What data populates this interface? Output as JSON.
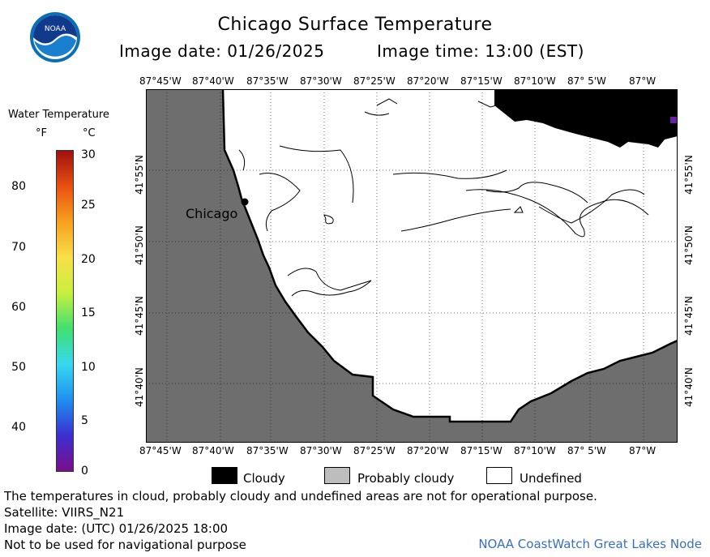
{
  "title": "Chicago Surface Temperature",
  "image_date": "Image date: 01/26/2025",
  "image_time": "Image time: 13:00 (EST)",
  "logo": {
    "text": "NOAA",
    "colors": {
      "outer": "#0a6fb6",
      "inner": "#ffffff",
      "bird": "#ffffff"
    }
  },
  "legend": {
    "title": "Water Temperature",
    "unit_f": "°F",
    "unit_c": "°C",
    "fahrenheit_ticks": [
      "80",
      "70",
      "60",
      "50",
      "40"
    ],
    "celsius_ticks": [
      "30",
      "25",
      "20",
      "15",
      "10",
      "5",
      "0"
    ],
    "range_c": [
      0,
      30
    ],
    "colormap": [
      "#7a0e8a",
      "#3b2fd0",
      "#1e8ff0",
      "#38d8f0",
      "#40e070",
      "#c8f040",
      "#f8e048",
      "#f8a020",
      "#e85010",
      "#a01010"
    ]
  },
  "map": {
    "lon_labels": [
      "87°45'W",
      "87°40'W",
      "87°35'W",
      "87°30'W",
      "87°25'W",
      "87°20'W",
      "87°15'W",
      "87°10'W",
      "87° 5'W",
      "87°W"
    ],
    "lat_labels": [
      "41°55'N",
      "41°50'N",
      "41°45'N",
      "41°40'N"
    ],
    "city_label": "Chicago",
    "colors": {
      "land": "#6e6e6e",
      "cloudy": "#000000",
      "undefined": "#ffffff",
      "grid": "#000000",
      "purple_pixel": "#6a1fa8"
    }
  },
  "key": [
    {
      "label": "Cloudy",
      "color": "#000000"
    },
    {
      "label": "Probably cloudy",
      "color": "#bdbdbd"
    },
    {
      "label": "Undefined",
      "color": "#ffffff"
    }
  ],
  "footer": {
    "note": "The temperatures in cloud, probably cloudy and undefined areas are not for operational purpose.",
    "satellite": "Satellite: VIIRS_N21",
    "utc_date": "Image date: (UTC) 01/26/2025  18:00",
    "navigation": "Not to be used for navigational purpose",
    "node": "NOAA CoastWatch Great Lakes Node"
  }
}
